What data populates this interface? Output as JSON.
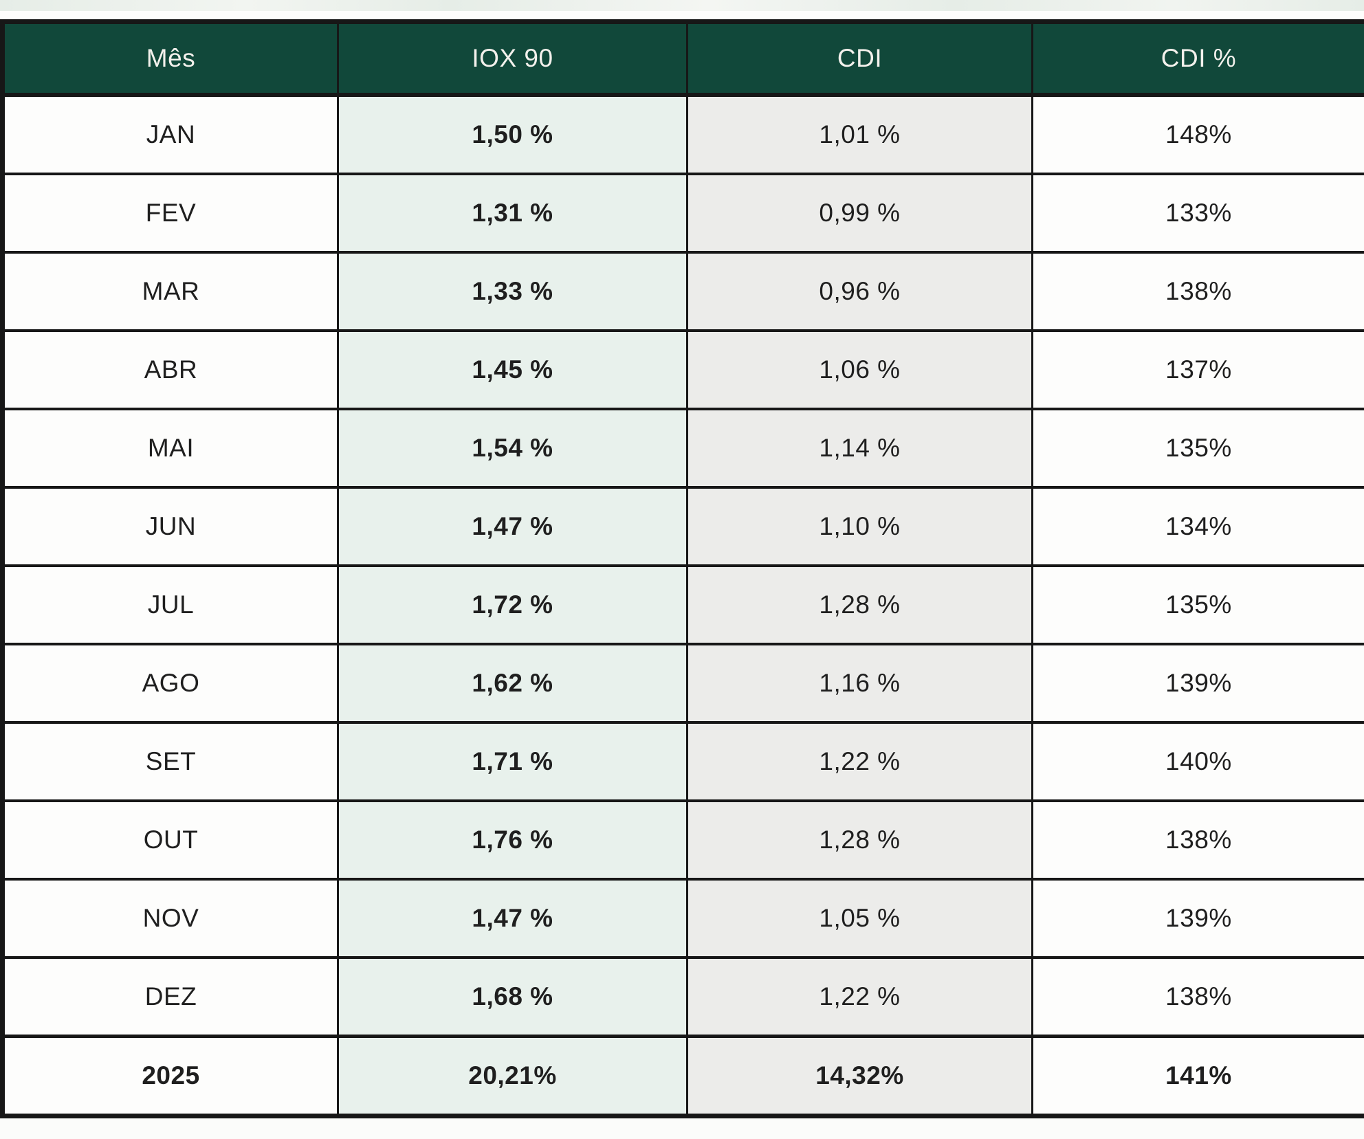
{
  "chart_data": {
    "type": "table",
    "columns": [
      "Mês",
      "IOX 90",
      "CDI",
      "CDI %"
    ],
    "rows": [
      [
        "JAN",
        "1,50 %",
        "1,01 %",
        "148%"
      ],
      [
        "FEV",
        "1,31 %",
        "0,99 %",
        "133%"
      ],
      [
        "MAR",
        "1,33 %",
        "0,96 %",
        "138%"
      ],
      [
        "ABR",
        "1,45 %",
        "1,06 %",
        "137%"
      ],
      [
        "MAI",
        "1,54 %",
        "1,14 %",
        "135%"
      ],
      [
        "JUN",
        "1,47 %",
        "1,10 %",
        "134%"
      ],
      [
        "JUL",
        "1,72 %",
        "1,28 %",
        "135%"
      ],
      [
        "AGO",
        "1,62 %",
        "1,16 %",
        "139%"
      ],
      [
        "SET",
        "1,71 %",
        "1,22 %",
        "140%"
      ],
      [
        "OUT",
        "1,76 %",
        "1,28 %",
        "138%"
      ],
      [
        "NOV",
        "1,47 %",
        "1,05 %",
        "139%"
      ],
      [
        "DEZ",
        "1,68 %",
        "1,22 %",
        "138%"
      ]
    ],
    "total_row": [
      "2025",
      "20,21%",
      "14,32%",
      "141%"
    ],
    "layout": {
      "grid": "full-borders",
      "bold_columns": [
        "IOX 90"
      ],
      "bold_rows": [
        "total"
      ]
    }
  },
  "colors": {
    "header_bg": "#11483a",
    "header_text": "#f3f1ec",
    "iox_bg": "#e8f1ec",
    "cdi_bg": "#ececea",
    "row_bg": "#fdfdfc",
    "border": "#171717",
    "text": "#1f1f1f",
    "page_bg": "#f7f8f6",
    "top_strip": "#e6ede7"
  }
}
